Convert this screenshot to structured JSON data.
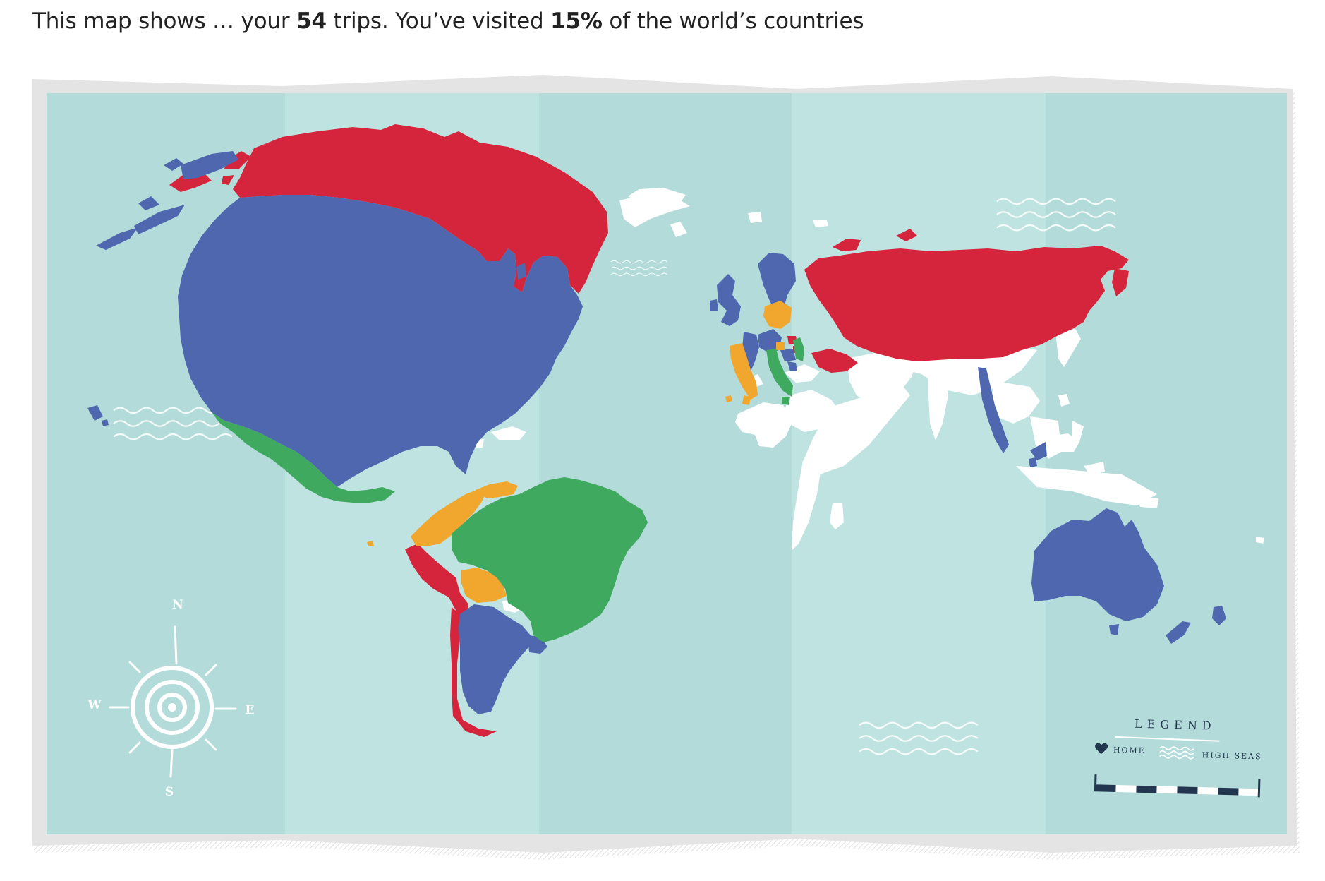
{
  "header": {
    "text_before_trips": "This map shows … your ",
    "trips_count": "54",
    "text_after_trips": " trips. You’ve visited ",
    "visited_percent": "15%",
    "text_after_percent": " of the world’s countries"
  },
  "colors": {
    "ocean": "#b2dbd9",
    "ocean_fold": "#bfe3e1",
    "frame": "#e4e4e4",
    "home": "#4e67ae",
    "red": "#d4253c",
    "green": "#3fa95f",
    "orange": "#f1a62e",
    "unvisited": "#ffffff",
    "legend_ink": "#22374f"
  },
  "compass": {
    "north": "N",
    "east": "E",
    "south": "S",
    "west": "W"
  },
  "legend": {
    "title": "LEGEND",
    "home_label": "HOME",
    "high_seas_label": "HIGH SEAS"
  },
  "icons": {
    "home": "heart-icon",
    "high_seas": "waves-icon",
    "compass": "compass-rose-icon",
    "scale": "scale-bar-icon"
  }
}
